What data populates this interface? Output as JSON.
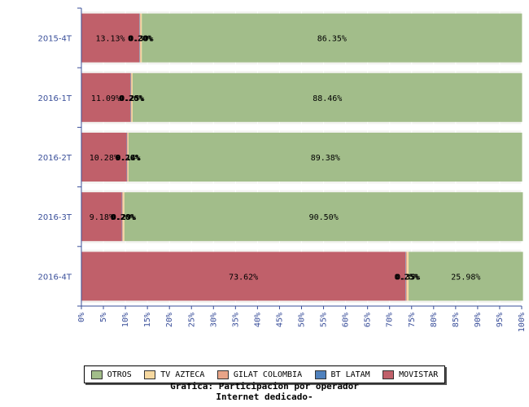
{
  "chart_data": {
    "type": "bar",
    "orientation": "horizontal",
    "stacked": true,
    "categories": [
      "2015-4T",
      "2016-1T",
      "2016-2T",
      "2016-3T",
      "2016-4T"
    ],
    "series": [
      {
        "name": "MOVISTAR",
        "color": "#c0606a",
        "values": [
          13.13,
          11.09,
          10.28,
          9.18,
          73.62
        ],
        "labels": [
          "13.13%",
          "11.09%",
          "10.28%",
          "9.18%",
          "73.62%"
        ]
      },
      {
        "name": "BT LATAM",
        "color": "#4f81bd",
        "values": [
          0.1,
          0.1,
          0.1,
          0.1,
          0.1
        ],
        "labels": [
          "",
          "",
          "",
          "",
          ""
        ]
      },
      {
        "name": "GILAT COLOMBIA",
        "color": "#e8a488",
        "values": [
          0.2,
          0.2,
          0.2,
          0.2,
          0.25
        ],
        "labels": [
          "0.20%",
          "0.20%",
          "0.20%",
          "0.20%",
          "0.25%"
        ]
      },
      {
        "name": "TV AZTECA",
        "color": "#f6d8a0",
        "values": [
          0.3,
          0.25,
          0.14,
          0.29,
          0.35
        ],
        "labels": [
          "0.30%",
          "0.25%",
          "0.14%",
          "0.29%",
          "0.35%"
        ]
      },
      {
        "name": "OTROS",
        "color": "#a2bd8a",
        "values": [
          86.35,
          88.46,
          89.38,
          90.5,
          25.98
        ],
        "labels": [
          "86.35%",
          "88.46%",
          "89.38%",
          "90.50%",
          "25.98%"
        ]
      }
    ],
    "xlim": [
      0,
      100
    ],
    "x_ticks": [
      "0%",
      "5%",
      "10%",
      "15%",
      "20%",
      "25%",
      "30%",
      "35%",
      "40%",
      "45%",
      "50%",
      "55%",
      "60%",
      "65%",
      "70%",
      "75%",
      "80%",
      "85%",
      "90%",
      "95%",
      "100%"
    ],
    "grid": true,
    "legend_placement": "bottom",
    "legend_order": [
      "OTROS",
      "TV AZTECA",
      "GILAT COLOMBIA",
      "BT LATAM",
      "MOVISTAR"
    ],
    "title_line1": "Grafica: Participacion por operador",
    "title_line2": "Internet dedicado-"
  }
}
